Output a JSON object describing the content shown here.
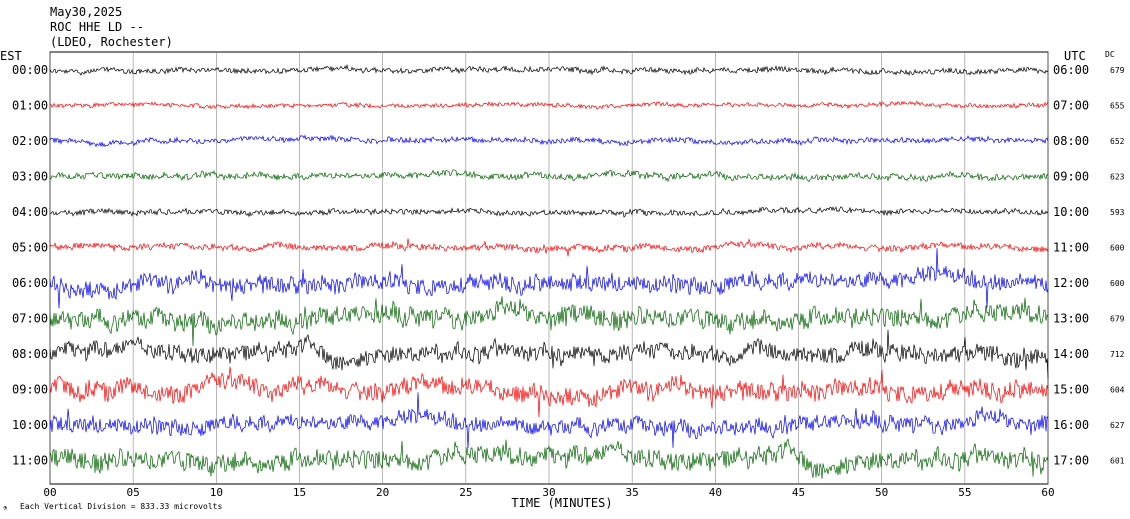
{
  "header": {
    "date": "May30,2025",
    "station": "ROC HHE LD --",
    "network": "(LDEO, Rochester)"
  },
  "labels": {
    "left_timezone": "EST",
    "right_timezone": "UTC",
    "dc_header": "DC",
    "xlabel": "TIME (MINUTES)",
    "footer": "Each Vertical Division = 833.33 microvolts"
  },
  "colors": {
    "cycle": [
      "#000000",
      "#ff0000",
      "#0000ff",
      "#006400"
    ],
    "grid": "#888888",
    "text": "#000000"
  },
  "chart_data": {
    "type": "line",
    "title": "ROC HHE LD --",
    "xlabel": "TIME (MINUTES)",
    "xlim": [
      0,
      60
    ],
    "x_ticks": [
      "00",
      "05",
      "10",
      "15",
      "20",
      "25",
      "30",
      "35",
      "40",
      "45",
      "50",
      "55",
      "60"
    ],
    "grid": true,
    "rows": [
      {
        "est": "00:00",
        "utc": "06:00",
        "dc": "679"
      },
      {
        "est": "01:00",
        "utc": "07:00",
        "dc": "655"
      },
      {
        "est": "02:00",
        "utc": "08:00",
        "dc": "652"
      },
      {
        "est": "03:00",
        "utc": "09:00",
        "dc": "623"
      },
      {
        "est": "04:00",
        "utc": "10:00",
        "dc": "593"
      },
      {
        "est": "05:00",
        "utc": "11:00",
        "dc": "600"
      },
      {
        "est": "06:00",
        "utc": "12:00",
        "dc": "600"
      },
      {
        "est": "07:00",
        "utc": "13:00",
        "dc": "679"
      },
      {
        "est": "08:00",
        "utc": "14:00",
        "dc": "712"
      },
      {
        "est": "09:00",
        "utc": "15:00",
        "dc": "604"
      },
      {
        "est": "10:00",
        "utc": "16:00",
        "dc": "627"
      },
      {
        "est": "11:00",
        "utc": "17:00",
        "dc": "601"
      }
    ]
  }
}
